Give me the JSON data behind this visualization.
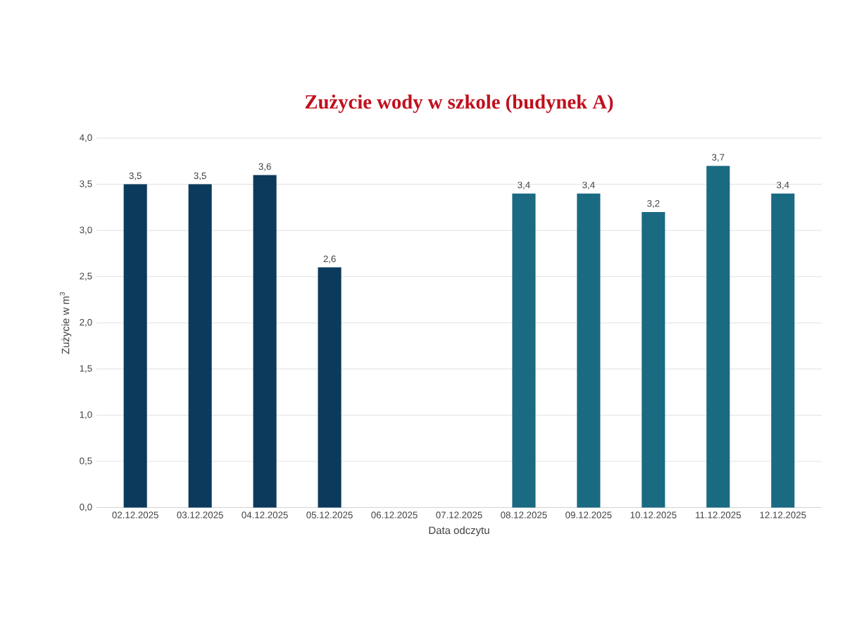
{
  "chart_data": {
    "type": "bar",
    "title": "Zużycie wody w szkole (budynek A)",
    "xlabel": "Data odczytu",
    "ylabel": "Zużycie w m$^{3}$",
    "categories": [
      "02.12.2025",
      "03.12.2025",
      "04.12.2025",
      "05.12.2025",
      "06.12.2025",
      "07.12.2025",
      "08.12.2025",
      "09.12.2025",
      "10.12.2025",
      "11.12.2025",
      "12.12.2025"
    ],
    "values": [
      3.5,
      3.5,
      3.6,
      2.6,
      null,
      null,
      3.4,
      3.4,
      3.2,
      3.7,
      3.4
    ],
    "value_labels": [
      "3,5",
      "3,5",
      "3,6",
      "2,6",
      null,
      null,
      "3,4",
      "3,4",
      "3,2",
      "3,7",
      "3,4"
    ],
    "colors": [
      "#0b3a5c",
      "#0b3a5c",
      "#0b3a5c",
      "#0b3a5c",
      "#0b3a5c",
      "#0b3a5c",
      "#1a6a82",
      "#1a6a82",
      "#1a6a82",
      "#1a6a82",
      "#1a6a82"
    ],
    "ylim": [
      0,
      4
    ],
    "yticks": [
      {
        "value": 0,
        "label": "0,0"
      },
      {
        "value": 0.5,
        "label": "0,5"
      },
      {
        "value": 1,
        "label": "1,0"
      },
      {
        "value": 1.5,
        "label": "1,5"
      },
      {
        "value": 2,
        "label": "2,0"
      },
      {
        "value": 2.5,
        "label": "2,5"
      },
      {
        "value": 3,
        "label": "3,0"
      },
      {
        "value": 3.5,
        "label": "3,5"
      },
      {
        "value": 4,
        "label": "4,0"
      }
    ],
    "grid": "y"
  }
}
